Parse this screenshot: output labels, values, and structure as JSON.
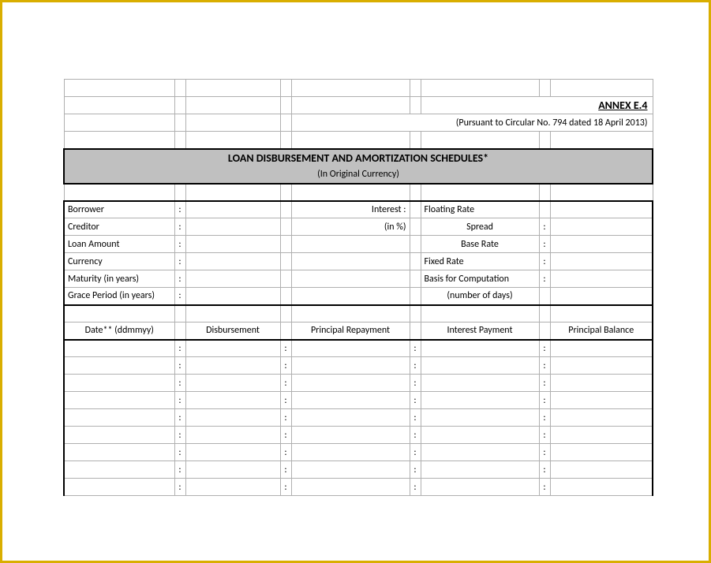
{
  "border_color": "#d9ae00",
  "header_bg": "#c0c0c0",
  "grid_color": "#b0b0b0",
  "thick_color": "#000000",
  "annex": "ANNEX E.4",
  "pursuant": "(Pursuant to Circular No. 794 dated 18 April 2013)",
  "title": "LOAN DISBURSEMENT AND AMORTIZATION SCHEDULES*",
  "subtitle": "(In Original Currency)",
  "left_labels": {
    "borrower": "Borrower",
    "creditor": "Creditor",
    "loan_amount": "Loan Amount",
    "currency": "Currency",
    "maturity": "Maturity (in years)",
    "grace": "Grace Period (in years)"
  },
  "mid_labels": {
    "interest": "Interest :",
    "in_pct": "(in %)"
  },
  "right_labels": {
    "floating": "Floating Rate",
    "spread": "Spread",
    "base_rate": "Base Rate",
    "fixed_rate": "Fixed Rate",
    "basis": "Basis for Computation",
    "num_days": "(number of days)"
  },
  "table_headers": {
    "date": "Date** (ddmmyy)",
    "disbursement": "Disbursement",
    "principal_repayment": "Principal Repayment",
    "interest_payment": "Interest Payment",
    "principal_balance": "Principal Balance"
  },
  "colon": ":",
  "data_row_count": 9
}
